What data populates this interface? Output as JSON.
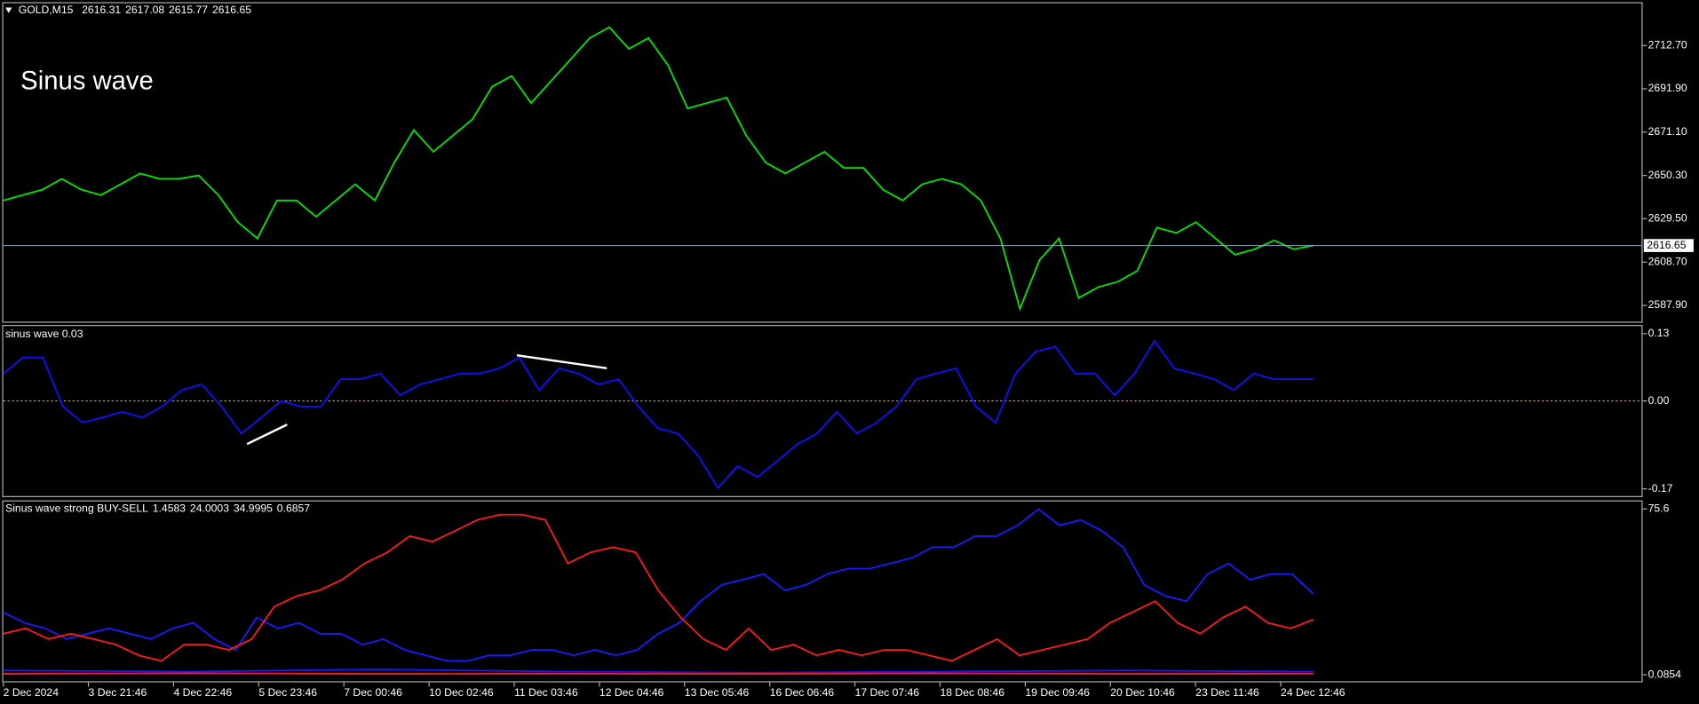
{
  "chart_data": [
    {
      "type": "line",
      "title": "GOLD,M15",
      "ohlc": [
        2616.31,
        2617.08,
        2615.77,
        2616.65
      ],
      "annotation": "Sinus wave",
      "ylim": [
        2579.58,
        2733.5
      ],
      "yticks": [
        {
          "value": 2712.7,
          "label": "2712.70"
        },
        {
          "value": 2691.9,
          "label": "2691.90"
        },
        {
          "value": 2671.1,
          "label": "2671.10"
        },
        {
          "value": 2650.3,
          "label": "2650.30"
        },
        {
          "value": 2629.5,
          "label": "2629.50"
        },
        {
          "value": 2608.7,
          "label": "2608.70"
        },
        {
          "value": 2587.9,
          "label": "2587.90"
        }
      ],
      "series": [
        {
          "color": "#00e600",
          "values": [
            2638.3,
            2640.9,
            2643.5,
            2648.7,
            2643.5,
            2640.9,
            2646.1,
            2651.3,
            2648.7,
            2648.7,
            2650.3,
            2640.9,
            2627.9,
            2620.1,
            2638.3,
            2638.3,
            2630.5,
            2638.3,
            2646.1,
            2638.3,
            2656.5,
            2672.1,
            2661.7,
            2669.5,
            2677.3,
            2692.9,
            2698.1,
            2685.1,
            2695.5,
            2705.9,
            2716.3,
            2721.5,
            2711.1,
            2716.3,
            2703.3,
            2682.5,
            2685.1,
            2687.7,
            2669.5,
            2656.5,
            2651.3,
            2656.5,
            2661.7,
            2653.9,
            2653.9,
            2643.5,
            2638.3,
            2646.1,
            2648.7,
            2646.1,
            2638.3,
            2620.1,
            2586.3,
            2609.7,
            2620.1,
            2591.5,
            2596.7,
            2599.3,
            2604.5,
            2625.3,
            2622.7,
            2627.9,
            2620.1,
            2612.3,
            2614.9,
            2619.1,
            2614.9,
            2616.65
          ]
        }
      ]
    },
    {
      "type": "line",
      "title": "sinus wave 0.03",
      "ylim": [
        -0.186,
        0.147
      ],
      "yticks": [
        0.13,
        {
          "value": 0,
          "label": "0.00"
        },
        -0.17
      ],
      "levels": [
        0
      ],
      "level_color": "#d2891e",
      "series": [
        {
          "color": "#1010ff",
          "values": [
            0.053,
            0.084,
            0.084,
            -0.011,
            -0.042,
            -0.032,
            -0.021,
            -0.032,
            -0.011,
            0.021,
            0.032,
            -0.011,
            -0.063,
            -0.032,
            0,
            -0.011,
            -0.011,
            0.042,
            0.042,
            0.053,
            0.011,
            0.032,
            0.042,
            0.053,
            0.053,
            0.063,
            0.084,
            0.021,
            0.063,
            0.053,
            0.032,
            0.042,
            -0.011,
            -0.053,
            -0.063,
            -0.105,
            -0.168,
            -0.126,
            -0.147,
            -0.116,
            -0.084,
            -0.063,
            -0.021,
            -0.063,
            -0.042,
            -0.011,
            0.042,
            0.053,
            0.063,
            -0.011,
            -0.042,
            0.053,
            0.095,
            0.105,
            0.053,
            0.053,
            0.011,
            0.053,
            0.116,
            0.063,
            0.053,
            0.042,
            0.021,
            0.053,
            0.042,
            0.042,
            0.042
          ]
        }
      ]
    },
    {
      "type": "line",
      "title": "Sinus wave strong BUY-SELL",
      "params": [
        1.4583,
        24.0003,
        34.9995,
        0.6857
      ],
      "ylim": [
        -3.37,
        79.5
      ],
      "yticks": [
        75.6,
        0.0854
      ],
      "xticks": [
        "2 Dec 2024",
        "3 Dec 21:46",
        "4 Dec 22:46",
        "5 Dec 23:46",
        "7 Dec 00:46",
        "10 Dec 02:46",
        "11 Dec 03:46",
        "12 Dec 04:46",
        "13 Dec 05:46",
        "16 Dec 06:46",
        "17 Dec 07:46",
        "18 Dec 08:46",
        "19 Dec 09:46",
        "20 Dec 10:46",
        "23 Dec 11:46",
        "24 Dec 12:46"
      ],
      "series": [
        {
          "color": "#1a1aff",
          "values": [
            2.0,
            1.5,
            2.5,
            1.5,
            1.0,
            1.5,
            2.0,
            1.5
          ]
        },
        {
          "color": "#ff1a1a",
          "values": [
            0.5,
            0.8,
            0.5,
            0.6,
            0.5,
            0.7,
            0.5,
            0.6
          ]
        },
        {
          "color": "#1a1aff",
          "values": [
            28.6,
            23.7,
            21.2,
            16.3,
            18.8,
            21.2,
            18.8,
            16.3,
            21.2,
            23.7,
            16.3,
            11.4,
            26.2,
            21.2,
            23.7,
            18.8,
            18.8,
            13.8,
            16.3,
            11.4,
            8.9,
            6.4,
            6.4,
            8.9,
            8.9,
            11.4,
            11.4,
            8.9,
            11.4,
            8.9,
            11.4,
            18.8,
            23.7,
            33.6,
            41.0,
            43.4,
            45.9,
            38.5,
            41.0,
            45.9,
            48.4,
            48.4,
            50.8,
            53.3,
            58.2,
            58.2,
            63.2,
            63.2,
            68.1,
            75.5,
            68.1,
            70.6,
            65.6,
            58.2,
            41.0,
            36.0,
            33.6,
            45.9,
            50.8,
            43.4,
            45.9,
            45.9,
            37.0
          ]
        },
        {
          "color": "#ff1a1a",
          "values": [
            18.8,
            21.2,
            16.3,
            18.8,
            16.3,
            13.8,
            8.9,
            6.4,
            13.8,
            13.8,
            11.4,
            16.3,
            31.1,
            36.0,
            38.5,
            43.4,
            50.8,
            55.8,
            63.2,
            60.7,
            65.6,
            70.6,
            73.0,
            73.0,
            70.6,
            50.8,
            55.8,
            58.2,
            55.8,
            38.5,
            26.2,
            16.3,
            11.4,
            21.2,
            11.4,
            13.8,
            8.9,
            11.4,
            8.9,
            11.4,
            11.4,
            8.9,
            6.4,
            11.4,
            16.3,
            8.9,
            11.4,
            13.8,
            16.3,
            23.7,
            28.6,
            33.6,
            23.7,
            18.8,
            26.2,
            31.1,
            23.7,
            21.2,
            25.2
          ]
        }
      ]
    }
  ]
}
